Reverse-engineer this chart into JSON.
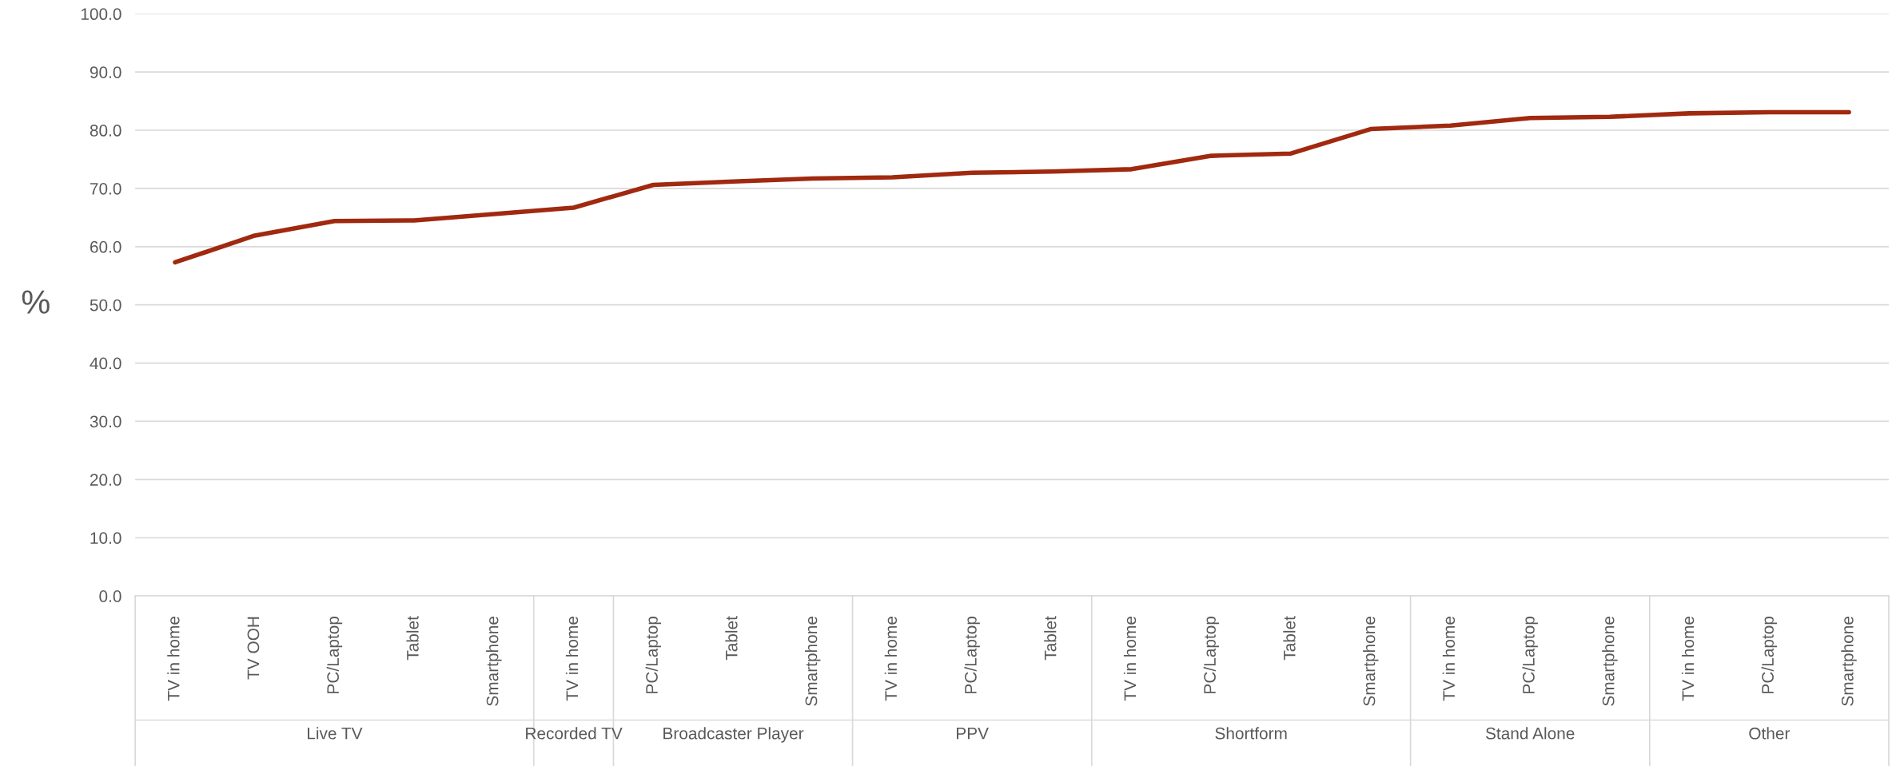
{
  "chart_data": {
    "type": "line",
    "ylabel": "%",
    "categories": [
      "TV in home",
      "TV OOH",
      "PC/Laptop",
      "Tablet",
      "Smartphone",
      "TV in home",
      "PC/Laptop",
      "Tablet",
      "Smartphone",
      "TV in home",
      "PC/Laptop",
      "Tablet",
      "TV in home",
      "PC/Laptop",
      "Tablet",
      "Smartphone",
      "TV in home",
      "PC/Laptop",
      "Smartphone",
      "TV in home",
      "PC/Laptop",
      "Smartphone"
    ],
    "series": [
      {
        "color": "#a0290f",
        "values": [
          57.3,
          61.9,
          64.4,
          64.5,
          65.6,
          66.7,
          70.6,
          71.2,
          71.7,
          71.9,
          72.7,
          72.9,
          73.3,
          75.6,
          76.0,
          80.2,
          80.8,
          82.1,
          82.3,
          82.9,
          83.1,
          83.1
        ]
      }
    ],
    "annotations": [
      "Live TV",
      "Recorded TV",
      "Broadcaster Player",
      "PPV",
      "Shortform",
      "Stand Alone",
      "Other"
    ],
    "ylim": [
      0,
      100
    ],
    "yticks": [
      {
        "value": 0,
        "label": "0.0"
      },
      {
        "value": 10,
        "label": "10.0"
      },
      {
        "value": 20,
        "label": "20.0"
      },
      {
        "value": 30,
        "label": "30.0"
      },
      {
        "value": 40,
        "label": "40.0"
      },
      {
        "value": 50,
        "label": "50.0"
      },
      {
        "value": 60,
        "label": "60.0"
      },
      {
        "value": 70,
        "label": "70.0"
      },
      {
        "value": 80,
        "label": "80.0"
      },
      {
        "value": 90,
        "label": "90.0"
      },
      {
        "value": 100,
        "label": "100.0"
      }
    ],
    "grid": "y",
    "marker": "none",
    "line_style": "solid"
  }
}
